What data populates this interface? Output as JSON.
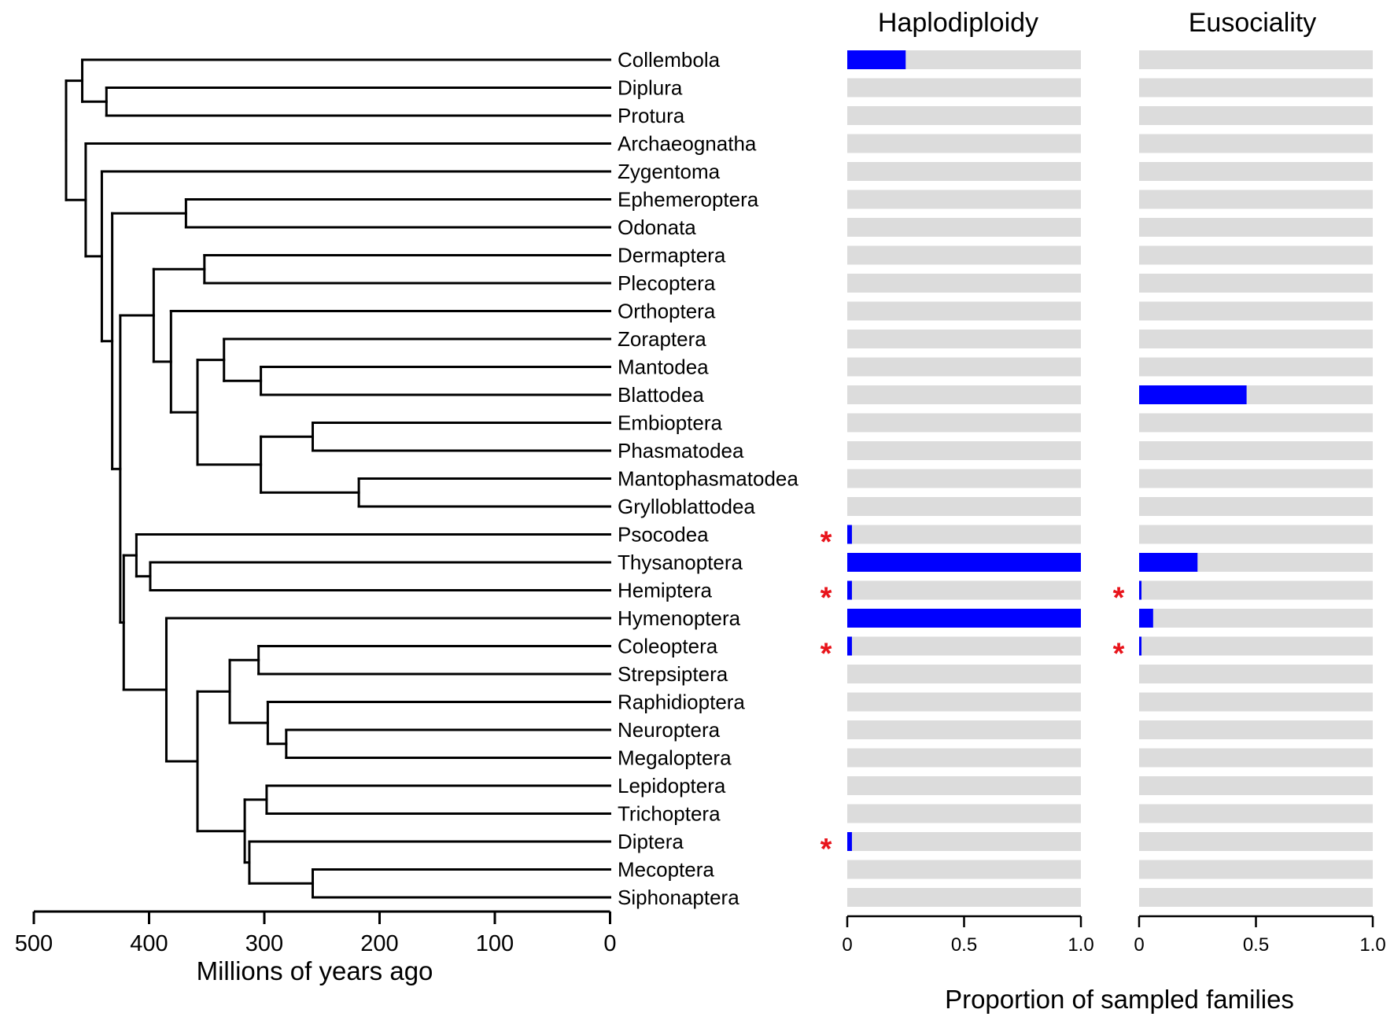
{
  "chart_data": {
    "type": "bar",
    "description_layout": "phylogeny with two horizontal bar panels",
    "taxa": [
      "Collembola",
      "Diplura",
      "Protura",
      "Archaeognatha",
      "Zygentoma",
      "Ephemeroptera",
      "Odonata",
      "Dermaptera",
      "Plecoptera",
      "Orthoptera",
      "Zoraptera",
      "Mantodea",
      "Blattodea",
      "Embioptera",
      "Phasmatodea",
      "Mantophasmatodea",
      "Grylloblattodea",
      "Psocodea",
      "Thysanoptera",
      "Hemiptera",
      "Hymenoptera",
      "Coleoptera",
      "Strepsiptera",
      "Raphidioptera",
      "Neuroptera",
      "Megaloptera",
      "Lepidoptera",
      "Trichoptera",
      "Diptera",
      "Mecoptera",
      "Siphonaptera"
    ],
    "tree": {
      "xlabel": "Millions of years ago",
      "xlim": [
        500,
        0
      ],
      "ticks": [
        500,
        400,
        300,
        200,
        100,
        0
      ],
      "tick_labels": [
        "500",
        "400",
        "300",
        "200",
        "100",
        "0"
      ],
      "nodes": [
        {
          "id": "n_dip_pro",
          "age": 437,
          "children": [
            1,
            2
          ]
        },
        {
          "id": "n_col_dp",
          "age": 458,
          "children": [
            0,
            "n_dip_pro"
          ]
        },
        {
          "id": "n_eph_odo",
          "age": 368,
          "children": [
            5,
            6
          ]
        },
        {
          "id": "n_der_ple",
          "age": 352,
          "children": [
            7,
            8
          ]
        },
        {
          "id": "n_man_bla",
          "age": 303,
          "children": [
            11,
            12
          ]
        },
        {
          "id": "n_zor_dict",
          "age": 335,
          "children": [
            10,
            "n_man_bla"
          ]
        },
        {
          "id": "n_emb_pha",
          "age": 258,
          "children": [
            13,
            14
          ]
        },
        {
          "id": "n_mph_gry",
          "age": 218,
          "children": [
            15,
            16
          ]
        },
        {
          "id": "n_emb_grp",
          "age": 303,
          "children": [
            "n_emb_pha",
            "n_mph_gry"
          ]
        },
        {
          "id": "n_dict_emb",
          "age": 358,
          "children": [
            "n_zor_dict",
            "n_emb_grp"
          ]
        },
        {
          "id": "n_ort_rest",
          "age": 381,
          "children": [
            9,
            "n_dict_emb"
          ]
        },
        {
          "id": "n_poly",
          "age": 396,
          "children": [
            "n_der_ple",
            "n_ort_rest"
          ]
        },
        {
          "id": "n_thy_hem",
          "age": 399,
          "children": [
            18,
            19
          ]
        },
        {
          "id": "n_paraneo",
          "age": 411,
          "children": [
            17,
            "n_thy_hem"
          ]
        },
        {
          "id": "n_col_str",
          "age": 305,
          "children": [
            21,
            22
          ]
        },
        {
          "id": "n_neu_meg",
          "age": 281,
          "children": [
            24,
            25
          ]
        },
        {
          "id": "n_neuropt",
          "age": 297,
          "children": [
            23,
            "n_neu_meg"
          ]
        },
        {
          "id": "n_coleopt",
          "age": 330,
          "children": [
            "n_col_str",
            "n_neuropt"
          ]
        },
        {
          "id": "n_lep_tri",
          "age": 298,
          "children": [
            26,
            27
          ]
        },
        {
          "id": "n_mec_sip",
          "age": 258,
          "children": [
            29,
            30
          ]
        },
        {
          "id": "n_dip_mec",
          "age": 313,
          "children": [
            28,
            "n_mec_sip"
          ]
        },
        {
          "id": "n_amphi_ant",
          "age": 317,
          "children": [
            "n_lep_tri",
            "n_dip_mec"
          ]
        },
        {
          "id": "n_holo_core",
          "age": 358,
          "children": [
            "n_coleopt",
            "n_amphi_ant"
          ]
        },
        {
          "id": "n_holo",
          "age": 385,
          "children": [
            20,
            "n_holo_core"
          ]
        },
        {
          "id": "n_eumeta",
          "age": 422,
          "children": [
            "n_paraneo",
            "n_holo"
          ]
        },
        {
          "id": "n_neopt",
          "age": 425,
          "children": [
            "n_poly",
            "n_eumeta"
          ]
        },
        {
          "id": "n_ptery",
          "age": 432,
          "children": [
            "n_eph_odo",
            "n_neopt"
          ]
        },
        {
          "id": "n_dicond",
          "age": 441,
          "children": [
            4,
            "n_ptery"
          ]
        },
        {
          "id": "n_insecta",
          "age": 455,
          "children": [
            3,
            "n_dicond"
          ]
        },
        {
          "id": "n_root",
          "age": 472,
          "children": [
            "n_col_dp",
            "n_insecta"
          ]
        }
      ]
    },
    "panels": [
      {
        "title": "Haplodiploidy",
        "values": [
          0.25,
          0,
          0,
          0,
          0,
          0,
          0,
          0,
          0,
          0,
          0,
          0,
          0,
          0,
          0,
          0,
          0,
          0.02,
          1.0,
          0.02,
          1.0,
          0.02,
          0,
          0,
          0,
          0,
          0,
          0,
          0.02,
          0,
          0
        ],
        "stars": [
          17,
          19,
          21,
          28
        ],
        "xlim": [
          0,
          1
        ],
        "ticks": [
          0,
          0.5,
          1.0
        ],
        "tick_labels": [
          "0",
          "0.5",
          "1.0"
        ]
      },
      {
        "title": "Eusociality",
        "values": [
          0,
          0,
          0,
          0,
          0,
          0,
          0,
          0,
          0,
          0,
          0,
          0,
          0.46,
          0,
          0,
          0,
          0,
          0,
          0.25,
          0.01,
          0.06,
          0.01,
          0,
          0,
          0,
          0,
          0,
          0,
          0,
          0,
          0
        ],
        "stars": [
          19,
          21
        ],
        "xlim": [
          0,
          1
        ],
        "ticks": [
          0,
          0.5,
          1.0
        ],
        "tick_labels": [
          "0",
          "0.5",
          "1.0"
        ]
      }
    ],
    "panel_xlabel": "Proportion of sampled families",
    "star_symbol": "*",
    "colors": {
      "bar": "#0000ff",
      "track": "#dcdcdc",
      "star": "#e8141b",
      "line": "#000000"
    }
  }
}
